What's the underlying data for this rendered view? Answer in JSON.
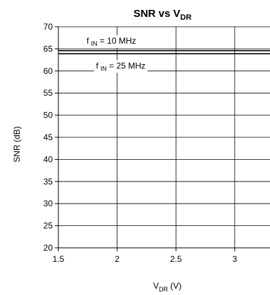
{
  "chart_data": {
    "type": "line",
    "title": "SNR vs V",
    "title_subscript": "DR",
    "xlabel": "V",
    "xlabel_subscript": "DR",
    "xlabel_suffix": " (V)",
    "ylabel": "SNR (dB)",
    "xlim": [
      1.5,
      3.3
    ],
    "ylim": [
      20,
      70
    ],
    "xticks": [
      1.5,
      2,
      2.5,
      3
    ],
    "xtick_labels": [
      "1.5",
      "2",
      "2.5",
      "3"
    ],
    "yticks": [
      20,
      25,
      30,
      35,
      40,
      45,
      50,
      55,
      60,
      65,
      70
    ],
    "ytick_labels": [
      "20",
      "25",
      "30",
      "35",
      "40",
      "45",
      "50",
      "55",
      "60",
      "65",
      "70"
    ],
    "grid": true,
    "series": [
      {
        "name": "f IN = 10 MHz",
        "x": [
          1.5,
          3.3
        ],
        "y": [
          64.6,
          64.6
        ],
        "color": "#000000"
      },
      {
        "name": "f IN = 25 MHz",
        "x": [
          1.5,
          3.3
        ],
        "y": [
          63.9,
          63.9
        ],
        "color": "#000000"
      }
    ],
    "annotations": [
      {
        "series": 0,
        "prefix": "f",
        "subscript": "IN",
        "suffix": " = 10 MHz",
        "x": 1.74,
        "y": 66.8
      },
      {
        "series": 1,
        "prefix": "f",
        "subscript": "IN",
        "suffix": " = 25 MHz",
        "x": 1.82,
        "y": 61.2
      }
    ]
  }
}
